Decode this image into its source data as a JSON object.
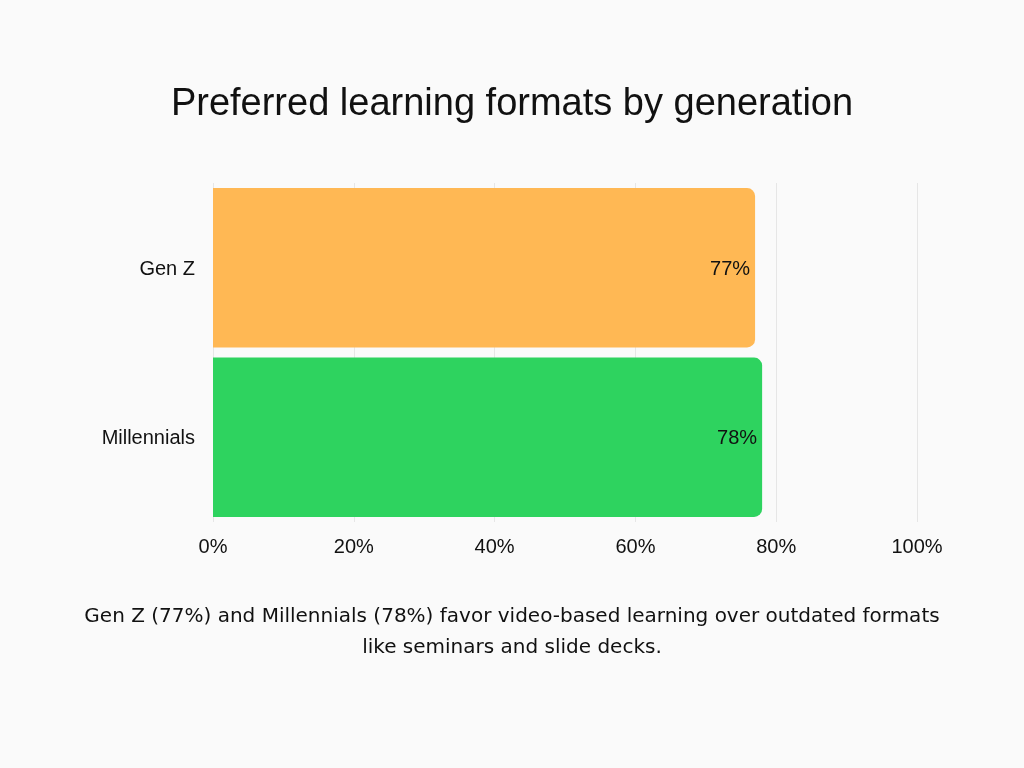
{
  "chart_data": {
    "type": "bar",
    "orientation": "horizontal",
    "title": "Preferred learning formats by generation",
    "categories": [
      "Gen Z",
      "Millennials"
    ],
    "values": [
      77,
      78
    ],
    "colors": [
      "#ffb854",
      "#2ed35f"
    ],
    "value_labels": [
      "77%",
      "78%"
    ],
    "xlim": [
      0,
      100
    ],
    "xticks": [
      {
        "value": 0,
        "label": "0%"
      },
      {
        "value": 20,
        "label": "20%"
      },
      {
        "value": 40,
        "label": "40%"
      },
      {
        "value": 60,
        "label": "60%"
      },
      {
        "value": 80,
        "label": "80%"
      },
      {
        "value": 100,
        "label": "100%"
      }
    ],
    "grid": "x",
    "annotations": [
      "Gen Z (77%) and Millennials (78%) favor video-based learning over outdated formats like seminars and slide decks."
    ]
  }
}
